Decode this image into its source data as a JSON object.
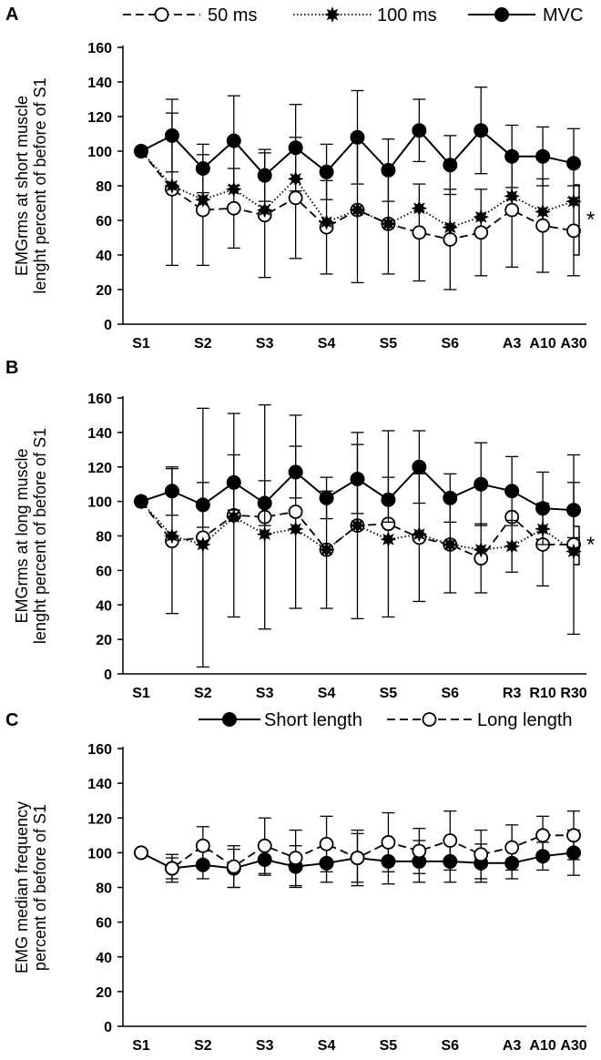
{
  "figure_letters": [
    "A",
    "B",
    "C"
  ],
  "chart_data": [
    {
      "type": "line",
      "panel": "A",
      "ylabel": [
        "EMGrms  at short muscle",
        "lenght percent of before of S1"
      ],
      "ylim": [
        0,
        160
      ],
      "yticks": [
        0,
        20,
        40,
        60,
        80,
        100,
        120,
        140,
        160
      ],
      "categories": [
        "S1",
        "",
        "S2",
        "",
        "S3",
        "",
        "S4",
        "",
        "S5",
        "",
        "S6",
        "",
        "A3",
        "A10",
        "A30"
      ],
      "legend": {
        "placement": "top",
        "entries": [
          "50 ms",
          "100 ms",
          "MVC"
        ]
      },
      "significance": "*",
      "series": [
        {
          "name": "50 ms",
          "marker": "open-circle",
          "line": "dashed",
          "values": [
            100,
            78,
            66,
            67,
            63,
            73,
            56,
            66,
            58,
            53,
            49,
            53,
            66,
            57,
            54
          ],
          "error": [
            0,
            44,
            32,
            23,
            36,
            35,
            27,
            42,
            29,
            28,
            29,
            25,
            33,
            27,
            26
          ]
        },
        {
          "name": "100 ms",
          "marker": "filled-star",
          "line": "dotted",
          "values": [
            100,
            80,
            72,
            78,
            66,
            84,
            59,
            66,
            58,
            67,
            56,
            62,
            74,
            65,
            71
          ],
          "error": [
            0,
            0,
            0,
            0,
            0,
            0,
            0,
            0,
            0,
            0,
            0,
            0,
            0,
            0,
            0
          ]
        },
        {
          "name": "MVC",
          "marker": "filled-circle",
          "line": "solid",
          "values": [
            100,
            109,
            90,
            106,
            86,
            102,
            88,
            108,
            89,
            112,
            92,
            112,
            97,
            97,
            93
          ],
          "error": [
            0,
            21,
            14,
            26,
            15,
            25,
            16,
            27,
            18,
            18,
            17,
            25,
            18,
            17,
            20
          ]
        }
      ]
    },
    {
      "type": "line",
      "panel": "B",
      "ylabel": [
        "EMGrms  at long muscle",
        "lenght percent of before of S1"
      ],
      "ylim": [
        0,
        160
      ],
      "yticks": [
        0,
        20,
        40,
        60,
        80,
        100,
        120,
        140,
        160
      ],
      "categories": [
        "S1",
        "",
        "S2",
        "",
        "S3",
        "",
        "S4",
        "",
        "S5",
        "",
        "S6",
        "",
        "R3",
        "R10",
        "R30"
      ],
      "significance": "*",
      "series": [
        {
          "name": "50 ms",
          "marker": "open-circle",
          "line": "dashed",
          "values": [
            100,
            77,
            79,
            92,
            91,
            94,
            72,
            86,
            87,
            79,
            75,
            67,
            91,
            75,
            75
          ],
          "error": [
            0,
            42,
            75,
            59,
            65,
            56,
            34,
            54,
            54,
            37,
            28,
            20,
            0,
            24,
            52
          ]
        },
        {
          "name": "100 ms",
          "marker": "filled-star",
          "line": "dotted",
          "values": [
            100,
            80,
            75,
            91,
            81,
            84,
            72,
            86,
            78,
            81,
            75,
            72,
            74,
            84,
            71
          ],
          "error": [
            0,
            0,
            0,
            0,
            0,
            0,
            0,
            0,
            0,
            0,
            0,
            0,
            15,
            0,
            0
          ]
        },
        {
          "name": "MVC",
          "marker": "filled-circle",
          "line": "solid",
          "values": [
            100,
            106,
            98,
            111,
            99,
            117,
            102,
            113,
            101,
            120,
            102,
            110,
            106,
            96,
            95
          ],
          "error": [
            0,
            14,
            13,
            16,
            13,
            15,
            12,
            20,
            13,
            21,
            14,
            24,
            20,
            21,
            16
          ]
        }
      ]
    },
    {
      "type": "line",
      "panel": "C",
      "ylabel": [
        "EMG  median frequency",
        "percent of before of S1"
      ],
      "ylim": [
        0,
        160
      ],
      "yticks": [
        0,
        20,
        40,
        60,
        80,
        100,
        120,
        140,
        160
      ],
      "categories": [
        "S1",
        "",
        "S2",
        "",
        "S3",
        "",
        "S4",
        "",
        "S5",
        "",
        "S6",
        "",
        "A3",
        "A10",
        "A30"
      ],
      "legend": {
        "placement": "top",
        "entries": [
          "Short length",
          "Long length"
        ]
      },
      "series": [
        {
          "name": "Short length",
          "marker": "filled-circle",
          "line": "solid",
          "values": [
            100,
            91,
            93,
            91,
            96,
            92,
            94,
            97,
            95,
            95,
            95,
            94,
            94,
            98,
            100
          ],
          "error": [
            0,
            6,
            8,
            11,
            9,
            12,
            11,
            14,
            13,
            12,
            12,
            11,
            9,
            8,
            13
          ]
        },
        {
          "name": "Long length",
          "marker": "open-circle",
          "line": "dashed",
          "values": [
            100,
            91,
            104,
            92,
            104,
            97,
            105,
            97,
            106,
            101,
            107,
            99,
            103,
            110,
            110
          ],
          "error": [
            0,
            8,
            11,
            12,
            16,
            16,
            16,
            16,
            17,
            13,
            17,
            14,
            13,
            11,
            14
          ]
        }
      ]
    }
  ]
}
